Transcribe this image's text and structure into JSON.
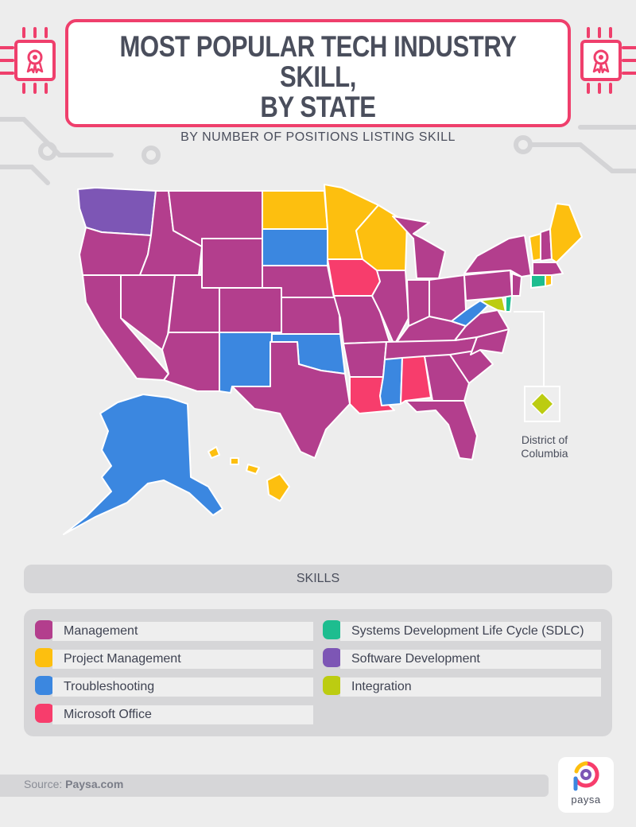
{
  "header": {
    "title_line1": "MOST POPULAR TECH INDUSTRY SKILL,",
    "title_line2": "BY STATE",
    "subtitle": "BY NUMBER OF POSITIONS LISTING SKILL"
  },
  "map": {
    "dc_label_line1": "District of",
    "dc_label_line2": "Columbia"
  },
  "skills": {
    "header": "SKILLS",
    "items": [
      {
        "label": "Management",
        "color": "#b33e8d"
      },
      {
        "label": "Project Management",
        "color": "#fdbf0f"
      },
      {
        "label": "Troubleshooting",
        "color": "#3b87e0"
      },
      {
        "label": "Microsoft Office",
        "color": "#f73d6c"
      },
      {
        "label": "Systems Development Life Cycle (SDLC)",
        "color": "#1dbd8f"
      },
      {
        "label": "Software Development",
        "color": "#7d56b5"
      },
      {
        "label": "Integration",
        "color": "#bccc11"
      }
    ]
  },
  "colors": {
    "accent": "#ef3f6c",
    "management": "#b33e8d",
    "project_management": "#fdbf0f",
    "troubleshooting": "#3b87e0",
    "microsoft_office": "#f73d6c",
    "sdlc": "#1dbd8f",
    "software_development": "#7d56b5",
    "integration": "#bccc11"
  },
  "footer": {
    "source_prefix": "Source: ",
    "source_name": "Paysa.com",
    "logo_text": "paysa"
  }
}
